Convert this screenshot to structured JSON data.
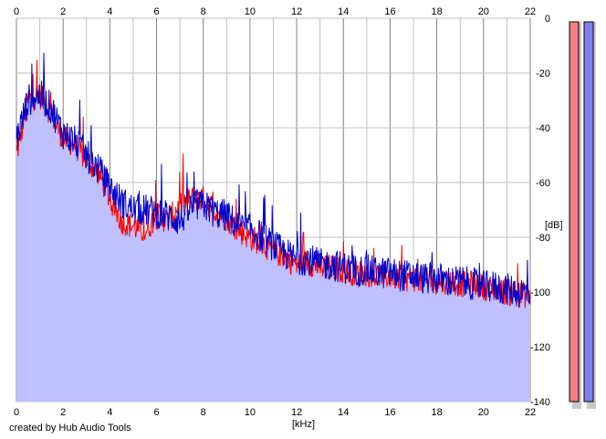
{
  "footer": {
    "credit": "created by Hub Audio Tools"
  },
  "colors": {
    "background": "#ffffff",
    "plot_background": "#ffffff",
    "fill": "#c0c0ff",
    "grid_major": "#808080",
    "grid_minor": "#c0c0c0",
    "left_channel": "#ff0000",
    "right_channel": "#0000cc",
    "meter_left": "#f08080",
    "meter_right": "#8080f0"
  },
  "chart_data": {
    "type": "line",
    "title": "",
    "xlabel": "[kHz]",
    "ylabel": "[dB]",
    "xlim": [
      0,
      22
    ],
    "ylim": [
      -140,
      0
    ],
    "x_ticks": [
      0,
      2,
      4,
      6,
      8,
      10,
      12,
      14,
      16,
      18,
      20,
      22
    ],
    "x_tick_labels": [
      "0",
      "2",
      "4",
      "6",
      "8",
      "10",
      "12",
      "14",
      "16",
      "18",
      "20",
      "22"
    ],
    "y_ticks": [
      0,
      -20,
      -40,
      -60,
      -80,
      -100,
      -120,
      -140
    ],
    "y_tick_labels": [
      "0",
      "-20",
      "-40",
      "-60",
      "-80",
      "-100",
      "-120",
      "-140"
    ],
    "grid": true,
    "x": [
      0,
      0.5,
      1,
      1.5,
      2,
      2.5,
      3,
      3.5,
      4,
      4.5,
      5,
      5.5,
      6,
      6.5,
      7,
      7.5,
      8,
      8.5,
      9,
      9.5,
      10,
      10.5,
      11,
      11.5,
      12,
      12.5,
      13,
      13.5,
      14,
      14.5,
      15,
      15.5,
      16,
      16.5,
      17,
      17.5,
      18,
      18.5,
      19,
      19.5,
      20,
      20.5,
      21,
      21.5,
      22
    ],
    "series": [
      {
        "values": [
          -50,
          -30,
          -28,
          -35,
          -44,
          -46,
          -52,
          -56,
          -66,
          -74,
          -76,
          -78,
          -72,
          -74,
          -68,
          -66,
          -66,
          -70,
          -73,
          -77,
          -80,
          -82,
          -85,
          -87,
          -90,
          -89,
          -91,
          -91,
          -92,
          -93,
          -93,
          -94,
          -94,
          -95,
          -95,
          -96,
          -96,
          -96,
          -97,
          -97,
          -98,
          -99,
          -100,
          -101,
          -101
        ]
      },
      {
        "values": [
          -44,
          -30,
          -28,
          -33,
          -42,
          -45,
          -50,
          -55,
          -62,
          -67,
          -70,
          -70,
          -71,
          -72,
          -74,
          -69,
          -68,
          -71,
          -72,
          -76,
          -77,
          -80,
          -83,
          -86,
          -88,
          -88,
          -90,
          -90,
          -91,
          -92,
          -92,
          -93,
          -93,
          -94,
          -94,
          -95,
          -95,
          -96,
          -96,
          -97,
          -98,
          -98,
          -99,
          -100,
          -100
        ]
      }
    ],
    "meters": [
      {
        "channel": "left",
        "level": 0
      },
      {
        "channel": "right",
        "level": 0
      }
    ]
  }
}
